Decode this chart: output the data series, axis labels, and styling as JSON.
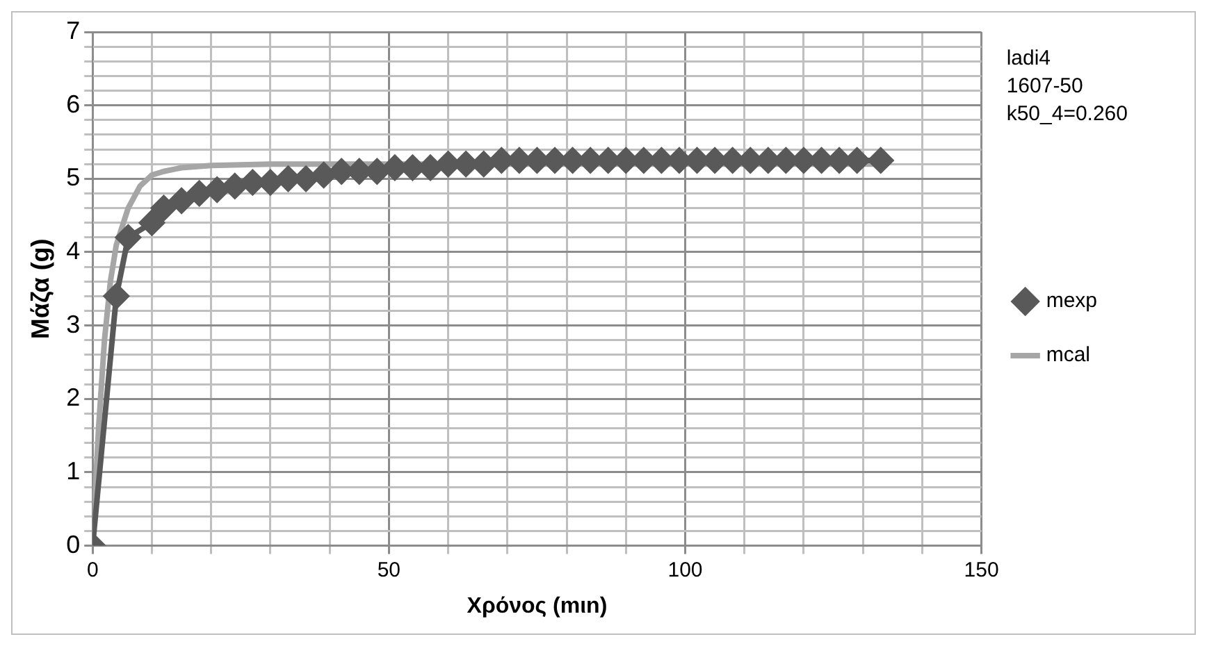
{
  "chart_data": {
    "type": "line",
    "xlabel": "Χρόνος (mιn)",
    "ylabel": "Μάζα (g)",
    "annotations": [
      "ladi4",
      "1607-50",
      "k50_4=0.260"
    ],
    "xlim": [
      0,
      150
    ],
    "xticks": [
      0,
      {
        "value": 10,
        "label": null
      },
      {
        "value": 20,
        "label": null
      },
      {
        "value": 30,
        "label": null
      },
      {
        "value": 40,
        "label": null
      },
      50,
      {
        "value": 60,
        "label": null
      },
      {
        "value": 70,
        "label": null
      },
      {
        "value": 80,
        "label": null
      },
      {
        "value": 90,
        "label": null
      },
      100,
      {
        "value": 110,
        "label": null
      },
      {
        "value": 120,
        "label": null
      },
      {
        "value": 130,
        "label": null
      },
      {
        "value": 140,
        "label": null
      },
      150
    ],
    "ylim": [
      0,
      7
    ],
    "yticks": [
      0,
      {
        "value": 0.2,
        "label": null
      },
      {
        "value": 0.4,
        "label": null
      },
      {
        "value": 0.6,
        "label": null
      },
      {
        "value": 0.8,
        "label": null
      },
      1,
      {
        "value": 1.2,
        "label": null
      },
      {
        "value": 1.4,
        "label": null
      },
      {
        "value": 1.6,
        "label": null
      },
      {
        "value": 1.8,
        "label": null
      },
      2,
      {
        "value": 2.2,
        "label": null
      },
      {
        "value": 2.4,
        "label": null
      },
      {
        "value": 2.6,
        "label": null
      },
      {
        "value": 2.8,
        "label": null
      },
      3,
      {
        "value": 3.2,
        "label": null
      },
      {
        "value": 3.4,
        "label": null
      },
      {
        "value": 3.6,
        "label": null
      },
      {
        "value": 3.8,
        "label": null
      },
      4,
      {
        "value": 4.2,
        "label": null
      },
      {
        "value": 4.4,
        "label": null
      },
      {
        "value": 4.6,
        "label": null
      },
      {
        "value": 4.8,
        "label": null
      },
      5,
      {
        "value": 5.2,
        "label": null
      },
      {
        "value": 5.4,
        "label": null
      },
      {
        "value": 5.6,
        "label": null
      },
      {
        "value": 5.8,
        "label": null
      },
      6,
      {
        "value": 6.2,
        "label": null
      },
      {
        "value": 6.4,
        "label": null
      },
      {
        "value": 6.6,
        "label": null
      },
      {
        "value": 6.8,
        "label": null
      },
      7
    ],
    "grid": true,
    "legend": "right",
    "series": [
      {
        "name": "mexp",
        "color": "#595959",
        "marker": "diamond",
        "x": [
          0,
          4,
          6,
          10,
          12,
          15,
          18,
          21,
          24,
          27,
          30,
          33,
          36,
          39,
          42,
          45,
          48,
          51,
          54,
          57,
          60,
          63,
          66,
          69,
          72,
          75,
          78,
          81,
          84,
          87,
          90,
          93,
          96,
          99,
          102,
          105,
          108,
          111,
          114,
          117,
          120,
          123,
          126,
          129,
          133
        ],
        "values": [
          0,
          3.4,
          4.2,
          4.4,
          4.6,
          4.7,
          4.8,
          4.85,
          4.9,
          4.95,
          4.95,
          5.0,
          5.0,
          5.05,
          5.1,
          5.1,
          5.1,
          5.15,
          5.15,
          5.15,
          5.2,
          5.2,
          5.2,
          5.25,
          5.25,
          5.25,
          5.25,
          5.25,
          5.25,
          5.25,
          5.25,
          5.25,
          5.25,
          5.25,
          5.25,
          5.25,
          5.25,
          5.25,
          5.25,
          5.25,
          5.25,
          5.25,
          5.25,
          5.25,
          5.25
        ]
      },
      {
        "name": "mcal",
        "color": "#a6a6a6",
        "marker": "none",
        "x": [
          0,
          1,
          2,
          3,
          4,
          6,
          8,
          10,
          12,
          15,
          20,
          30,
          60,
          133
        ],
        "values": [
          0,
          1.6,
          2.8,
          3.6,
          4.1,
          4.6,
          4.9,
          5.05,
          5.1,
          5.15,
          5.18,
          5.2,
          5.2,
          5.2
        ]
      }
    ]
  }
}
